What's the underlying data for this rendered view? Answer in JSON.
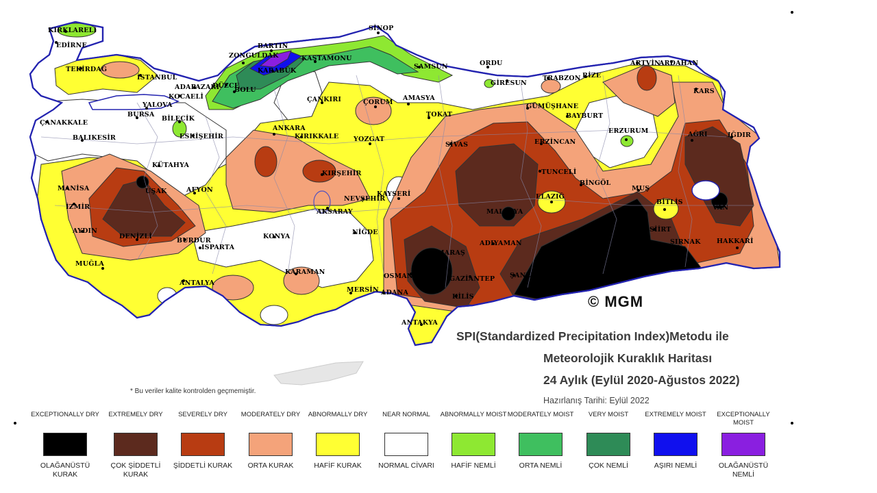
{
  "title": {
    "line1": "SPI(Standardized Precipitation Index)Metodu ile",
    "line2": "Meteorolojik Kuraklık Haritası",
    "line3": "24 Aylık (Eylül 2020-Ağustos 2022)",
    "prepared": "Hazırlanış Tarihi: Eylül 2022"
  },
  "watermark": "© MGM",
  "note": "* Bu veriler kalite kontrolden geçmemiştir.",
  "colors": {
    "exceptionally_dry": "#000000",
    "extremely_dry": "#5c2a1e",
    "severely_dry": "#b83c12",
    "moderately_dry": "#f4a37a",
    "abnormally_dry": "#ffff33",
    "near_normal": "#ffffff",
    "abnormally_moist": "#8ee832",
    "moderately_moist": "#3fbf5f",
    "very_moist": "#2e8b57",
    "extremely_moist": "#1010ee",
    "exceptionally_moist": "#8a1fe0"
  },
  "legend": [
    {
      "en": "EXCEPTIONALLY DRY",
      "tr": "OLAĞANÜSTÜ KURAK",
      "color": "#000000"
    },
    {
      "en": "EXTREMELY DRY",
      "tr": "ÇOK ŞİDDETLİ KURAK",
      "color": "#5c2a1e"
    },
    {
      "en": "SEVERELY DRY",
      "tr": "ŞİDDETLİ KURAK",
      "color": "#b83c12"
    },
    {
      "en": "MODERATELY DRY",
      "tr": "ORTA KURAK",
      "color": "#f4a37a"
    },
    {
      "en": "ABNORMALLY DRY",
      "tr": "HAFİF KURAK",
      "color": "#ffff33"
    },
    {
      "en": "NEAR NORMAL",
      "tr": "NORMAL CİVARI",
      "color": "#ffffff"
    },
    {
      "en": "ABNORMALLY MOIST",
      "tr": "HAFİF NEMLİ",
      "color": "#8ee832"
    },
    {
      "en": "MODERATELY MOIST",
      "tr": "ORTA NEMLİ",
      "color": "#3fbf5f"
    },
    {
      "en": "VERY MOIST",
      "tr": "ÇOK NEMLİ",
      "color": "#2e8b57"
    },
    {
      "en": "EXTREMELY MOIST",
      "tr": "AŞIRI NEMLİ",
      "color": "#1010ee"
    },
    {
      "en": "EXCEPTIONALLY MOIST",
      "tr": "OLAĞANÜSTÜ NEMLİ",
      "color": "#8a1fe0"
    }
  ],
  "cities": {
    "kirklareli": "KIRKLARELİ",
    "edirne": "EDİRNE",
    "tekirdag": "TEKİRDAĞ",
    "istanbul": "İSTANBUL",
    "canakkale": "ÇANAKKALE",
    "balikesir": "BALIKESİR",
    "bursa": "BURSA",
    "yalova": "YALOVA",
    "kocaeli": "KOCAELİ",
    "sakarya": "ADAPAZARI",
    "bilecik": "BİLECİK",
    "eskisehir": "ESKİŞEHİR",
    "kutahya": "KÜTAHYA",
    "manisa": "MANİSA",
    "izmir": "İZMİR",
    "usak": "UŞAK",
    "afyon": "AFYON",
    "aydin": "AYDIN",
    "denizli": "DENİZLİ",
    "burdur": "BURDUR",
    "isparta": "ISPARTA",
    "mugla": "MUĞLA",
    "antalya": "ANTALYA",
    "zonguldak": "ZONGULDAK",
    "bartin": "BARTIN",
    "karabuk": "KARABÜK",
    "duzce": "DÜZCE",
    "bolu": "BOLU",
    "kastamonu": "KASTAMONU",
    "sinop": "SİNOP",
    "samsun": "SAMSUN",
    "cankiri": "ÇANKIRI",
    "corum": "ÇORUM",
    "amasya": "AMASYA",
    "tokat": "TOKAT",
    "ankara": "ANKARA",
    "kirikkale": "KIRIKKALE",
    "yozgat": "YOZGAT",
    "kirsehir": "KIRŞEHİR",
    "nevsehir": "NEVŞEHİR",
    "kayseri": "KAYSERİ",
    "aksaray": "AKSARAY",
    "konya": "KONYA",
    "karaman": "KARAMAN",
    "nigde": "NİĞDE",
    "mersin": "MERSİN",
    "adana": "ADANA",
    "hatay": "ANTAKYA",
    "osmaniye": "OSMANİYE",
    "kahramanmaras": "K.MARAŞ",
    "gaziantep": "GAZİANTEP",
    "kilis": "KİLİS",
    "adiyaman": "ADIYAMAN",
    "malatya": "MALATYA",
    "sanliurfa": "ŞANLIURFA",
    "sivas": "SİVAS",
    "ordu": "ORDU",
    "giresun": "GİRESUN",
    "trabzon": "TRABZON",
    "rize": "RİZE",
    "gumushane": "GÜMÜŞHANE",
    "bayburt": "BAYBURT",
    "erzincan": "ERZİNCAN",
    "erzurum": "ERZURUM",
    "tunceli": "TUNCELİ",
    "elazig": "ELAZIĞ",
    "bingol": "BİNGÖL",
    "mus": "MUŞ",
    "bitlis": "BİTLİS",
    "artvin": "ARTVİN",
    "ardahan": "ARDAHAN",
    "kars": "KARS",
    "agri": "AĞRI",
    "igdir": "IĞDIR",
    "van": "VAN",
    "hakkari": "HAKKARİ",
    "sirnak": "ŞIRNAK",
    "siirt": "SİİRT"
  }
}
